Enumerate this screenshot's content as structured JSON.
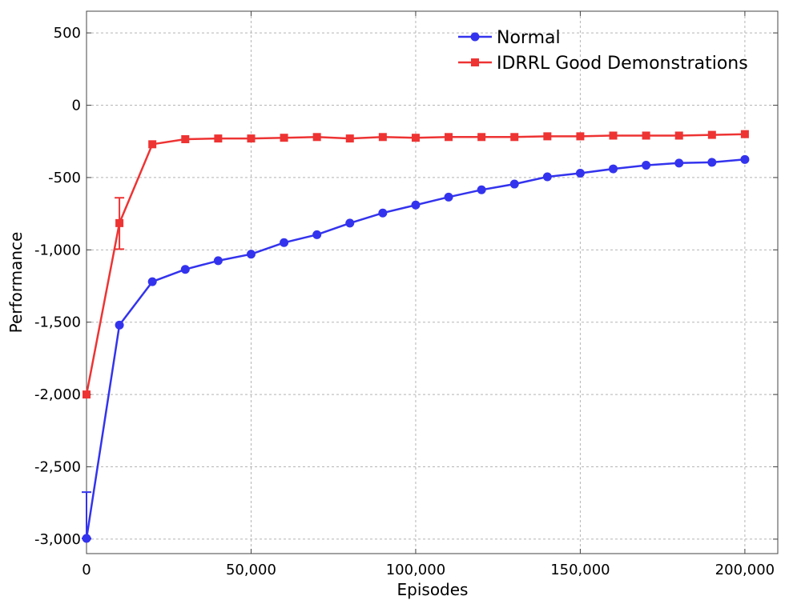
{
  "chart_data": {
    "type": "line",
    "title": "",
    "xlabel": "Episodes",
    "ylabel": "Performance",
    "xlim": [
      0,
      210000
    ],
    "ylim": [
      -3100,
      650
    ],
    "xticks": [
      {
        "value": 0,
        "label": "0"
      },
      {
        "value": 50000,
        "label": "50,000"
      },
      {
        "value": 100000,
        "label": "100,000"
      },
      {
        "value": 150000,
        "label": "150,000"
      },
      {
        "value": 200000,
        "label": "200,000"
      }
    ],
    "yticks": [
      {
        "value": 500,
        "label": "500"
      },
      {
        "value": 0,
        "label": "0"
      },
      {
        "value": -500,
        "label": "-500"
      },
      {
        "value": -1000,
        "label": "-1,000"
      },
      {
        "value": -1500,
        "label": "-1,500"
      },
      {
        "value": -2000,
        "label": "-2,000"
      },
      {
        "value": -2500,
        "label": "-2,500"
      },
      {
        "value": -3000,
        "label": "-3,000"
      }
    ],
    "grid": true,
    "legend_position": "top-right",
    "series": [
      {
        "name": "Normal",
        "color": "#3333ee",
        "marker": "circle",
        "x": [
          0,
          10000,
          20000,
          30000,
          40000,
          50000,
          60000,
          70000,
          80000,
          90000,
          100000,
          110000,
          120000,
          130000,
          140000,
          150000,
          160000,
          170000,
          180000,
          190000,
          200000
        ],
        "y": [
          -2995,
          -1520,
          -1220,
          -1135,
          -1075,
          -1030,
          -950,
          -895,
          -815,
          -745,
          -690,
          -635,
          -585,
          -545,
          -495,
          -470,
          -440,
          -415,
          -400,
          -395,
          -375
        ],
        "error_bars": [
          {
            "x": 0,
            "low": -2995,
            "high": -2675
          }
        ]
      },
      {
        "name": "IDRRL Good Demonstrations",
        "color": "#ee3333",
        "marker": "square",
        "x": [
          0,
          10000,
          20000,
          30000,
          40000,
          50000,
          60000,
          70000,
          80000,
          90000,
          100000,
          110000,
          120000,
          130000,
          140000,
          150000,
          160000,
          170000,
          180000,
          190000,
          200000
        ],
        "y": [
          -2000,
          -815,
          -270,
          -235,
          -230,
          -230,
          -225,
          -220,
          -230,
          -220,
          -225,
          -220,
          -220,
          -220,
          -215,
          -215,
          -210,
          -210,
          -210,
          -205,
          -200
        ],
        "error_bars": [
          {
            "x": 10000,
            "low": -995,
            "high": -640
          }
        ]
      }
    ]
  }
}
